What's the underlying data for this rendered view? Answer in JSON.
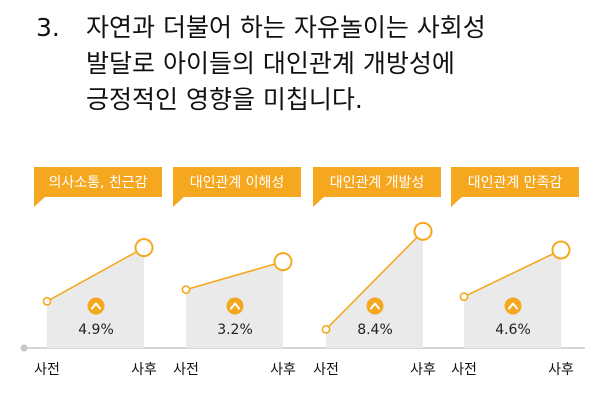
{
  "heading": {
    "number": "3.",
    "lines": [
      "자연과 더불어 하는 자유놀이는 사회성",
      "발달로 아이들의 대인관계 개방성에",
      "긍정적인 영향을 미칩니다."
    ]
  },
  "colors": {
    "accent": "#F5A81F",
    "area": "#EAEAEA",
    "axis": "#C8C8C8"
  },
  "icons": [
    "chevron-up-icon"
  ],
  "chart_data": [
    {
      "type": "area",
      "title": "의사소통, 친근감",
      "categories": [
        "사전",
        "사후"
      ],
      "values": [
        20,
        43
      ],
      "change_label": "4.9%",
      "ylim": [
        0,
        60
      ]
    },
    {
      "type": "area",
      "title": "대인관계 이해성",
      "categories": [
        "사전",
        "사후"
      ],
      "values": [
        25,
        37
      ],
      "change_label": "3.2%",
      "ylim": [
        0,
        60
      ]
    },
    {
      "type": "area",
      "title": "대인관계 개발성",
      "categories": [
        "사전",
        "사후"
      ],
      "values": [
        8,
        50
      ],
      "change_label": "8.4%",
      "ylim": [
        0,
        60
      ]
    },
    {
      "type": "area",
      "title": "대인관계 만족감",
      "categories": [
        "사전",
        "사후"
      ],
      "values": [
        22,
        42
      ],
      "change_label": "4.6%",
      "ylim": [
        0,
        60
      ]
    }
  ]
}
